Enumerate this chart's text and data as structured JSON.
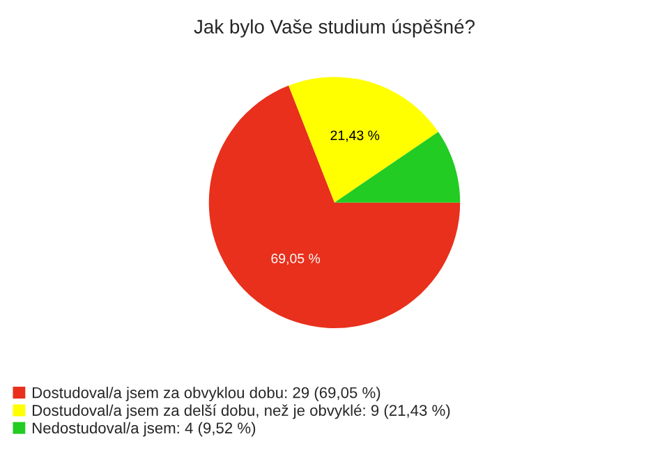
{
  "chart_data": {
    "type": "pie",
    "title": "Jak bylo Vaše studium úspěšné?",
    "categories": [
      "Dostudoval/a jsem za obvyklou dobu: 29 (69,05 %)",
      "Dostudoval/a jsem za delší dobu, než je obvyklé: 9 (21,43 %)",
      "Nedostudoval/a jsem: 4 (9,52 %)"
    ],
    "values": [
      69.05,
      21.43,
      9.52
    ],
    "colors": [
      "#e8301c",
      "#ffff00",
      "#22cc22"
    ],
    "value_labels": [
      "69,05 %",
      "21,43 %",
      null
    ],
    "legend": "bottom left"
  }
}
